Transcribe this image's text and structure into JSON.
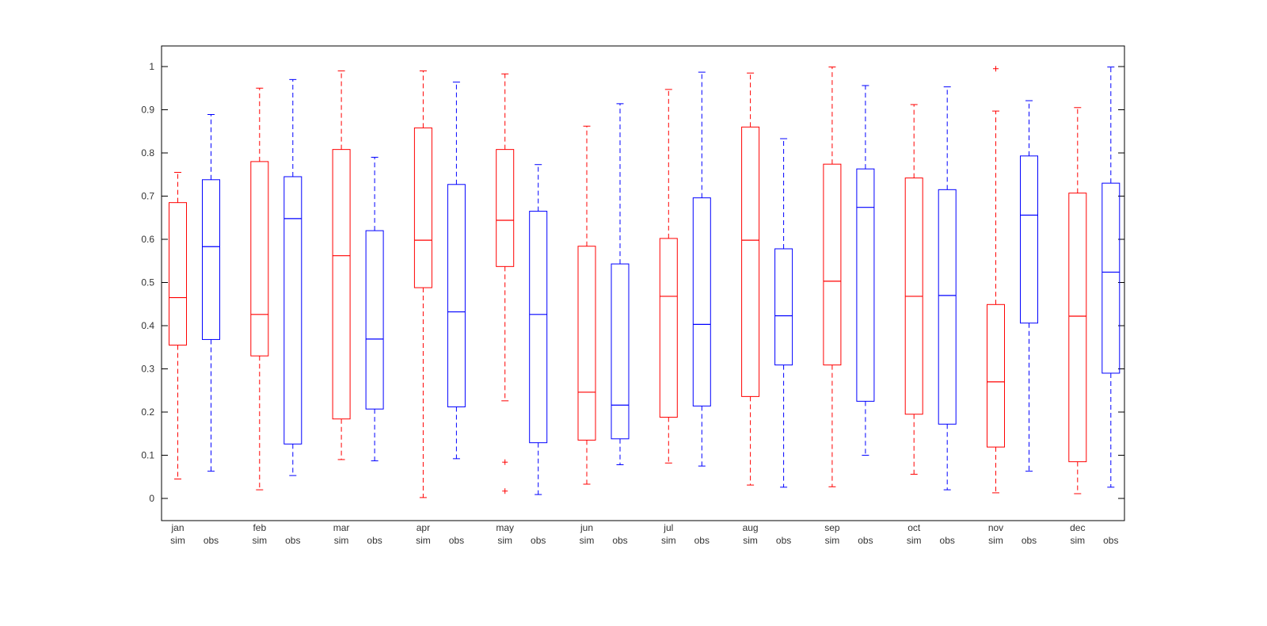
{
  "chart_data": {
    "type": "boxplot",
    "ylim": [
      -0.05,
      1.05
    ],
    "yticks": [
      "0",
      "0.1",
      "0.2",
      "0.3",
      "0.4",
      "0.5",
      "0.6",
      "0.7",
      "0.8",
      "0.9",
      "1"
    ],
    "ytick_values": [
      0,
      0.1,
      0.2,
      0.3,
      0.4,
      0.5,
      0.6,
      0.7,
      0.8,
      0.9,
      1
    ],
    "grid": false,
    "colors": {
      "sim": "#ff0000",
      "obs": "#0000ff"
    },
    "groups": [
      {
        "month": "jan",
        "sim": {
          "label": "sim",
          "whisker_low": 0.045,
          "q1": 0.355,
          "median": 0.465,
          "q3": 0.685,
          "whisker_high": 0.755,
          "outliers": []
        },
        "obs": {
          "label": "obs",
          "whisker_low": 0.063,
          "q1": 0.368,
          "median": 0.583,
          "q3": 0.738,
          "whisker_high": 0.889,
          "outliers": []
        }
      },
      {
        "month": "feb",
        "sim": {
          "label": "sim",
          "whisker_low": 0.02,
          "q1": 0.33,
          "median": 0.426,
          "q3": 0.78,
          "whisker_high": 0.95,
          "outliers": []
        },
        "obs": {
          "label": "obs",
          "whisker_low": 0.053,
          "q1": 0.126,
          "median": 0.648,
          "q3": 0.745,
          "whisker_high": 0.97,
          "outliers": []
        }
      },
      {
        "month": "mar",
        "sim": {
          "label": "sim",
          "whisker_low": 0.09,
          "q1": 0.184,
          "median": 0.562,
          "q3": 0.808,
          "whisker_high": 0.99,
          "outliers": []
        },
        "obs": {
          "label": "obs",
          "whisker_low": 0.087,
          "q1": 0.207,
          "median": 0.369,
          "q3": 0.62,
          "whisker_high": 0.79,
          "outliers": []
        }
      },
      {
        "month": "apr",
        "sim": {
          "label": "sim",
          "whisker_low": 0.002,
          "q1": 0.488,
          "median": 0.598,
          "q3": 0.858,
          "whisker_high": 0.99,
          "outliers": []
        },
        "obs": {
          "label": "obs",
          "whisker_low": 0.092,
          "q1": 0.212,
          "median": 0.432,
          "q3": 0.727,
          "whisker_high": 0.964,
          "outliers": []
        }
      },
      {
        "month": "may",
        "sim": {
          "label": "sim",
          "whisker_low": 0.226,
          "q1": 0.537,
          "median": 0.644,
          "q3": 0.808,
          "whisker_high": 0.983,
          "outliers": [
            0.084,
            0.017
          ]
        },
        "obs": {
          "label": "obs",
          "whisker_low": 0.009,
          "q1": 0.129,
          "median": 0.426,
          "q3": 0.665,
          "whisker_high": 0.773,
          "outliers": []
        }
      },
      {
        "month": "jun",
        "sim": {
          "label": "sim",
          "whisker_low": 0.033,
          "q1": 0.135,
          "median": 0.246,
          "q3": 0.584,
          "whisker_high": 0.862,
          "outliers": []
        },
        "obs": {
          "label": "obs",
          "whisker_low": 0.078,
          "q1": 0.138,
          "median": 0.216,
          "q3": 0.543,
          "whisker_high": 0.914,
          "outliers": []
        }
      },
      {
        "month": "jul",
        "sim": {
          "label": "sim",
          "whisker_low": 0.082,
          "q1": 0.188,
          "median": 0.468,
          "q3": 0.602,
          "whisker_high": 0.947,
          "outliers": []
        },
        "obs": {
          "label": "obs",
          "whisker_low": 0.075,
          "q1": 0.214,
          "median": 0.403,
          "q3": 0.696,
          "whisker_high": 0.987,
          "outliers": []
        }
      },
      {
        "month": "aug",
        "sim": {
          "label": "sim",
          "whisker_low": 0.031,
          "q1": 0.236,
          "median": 0.598,
          "q3": 0.86,
          "whisker_high": 0.985,
          "outliers": []
        },
        "obs": {
          "label": "obs",
          "whisker_low": 0.026,
          "q1": 0.309,
          "median": 0.423,
          "q3": 0.578,
          "whisker_high": 0.833,
          "outliers": []
        }
      },
      {
        "month": "sep",
        "sim": {
          "label": "sim",
          "whisker_low": 0.027,
          "q1": 0.309,
          "median": 0.503,
          "q3": 0.774,
          "whisker_high": 0.999,
          "outliers": []
        },
        "obs": {
          "label": "obs",
          "whisker_low": 0.1,
          "q1": 0.225,
          "median": 0.674,
          "q3": 0.763,
          "whisker_high": 0.956,
          "outliers": []
        }
      },
      {
        "month": "oct",
        "sim": {
          "label": "sim",
          "whisker_low": 0.056,
          "q1": 0.195,
          "median": 0.468,
          "q3": 0.742,
          "whisker_high": 0.912,
          "outliers": []
        },
        "obs": {
          "label": "obs",
          "whisker_low": 0.02,
          "q1": 0.172,
          "median": 0.47,
          "q3": 0.715,
          "whisker_high": 0.953,
          "outliers": []
        }
      },
      {
        "month": "nov",
        "sim": {
          "label": "sim",
          "whisker_low": 0.013,
          "q1": 0.119,
          "median": 0.27,
          "q3": 0.449,
          "whisker_high": 0.897,
          "outliers": [
            0.995
          ]
        },
        "obs": {
          "label": "obs",
          "whisker_low": 0.063,
          "q1": 0.406,
          "median": 0.656,
          "q3": 0.793,
          "whisker_high": 0.921,
          "outliers": []
        }
      },
      {
        "month": "dec",
        "sim": {
          "label": "sim",
          "whisker_low": 0.011,
          "q1": 0.085,
          "median": 0.422,
          "q3": 0.707,
          "whisker_high": 0.905,
          "outliers": []
        },
        "obs": {
          "label": "obs",
          "whisker_low": 0.026,
          "q1": 0.29,
          "median": 0.524,
          "q3": 0.73,
          "whisker_high": 0.999,
          "outliers": []
        }
      }
    ]
  }
}
